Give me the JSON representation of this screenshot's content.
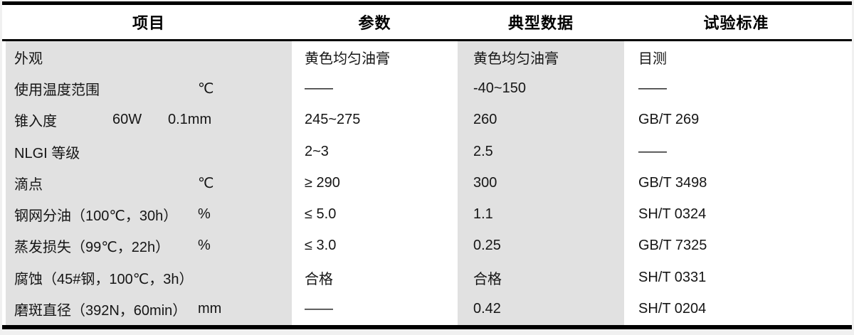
{
  "colors": {
    "stripe_gray": "#e1e1e1",
    "border_black": "#000000",
    "page_background": "#f0f0f0",
    "cell_white": "#ffffff"
  },
  "table": {
    "columns": [
      "项目",
      "参数",
      "典型数据",
      "试验标准"
    ],
    "rows": [
      {
        "item": "外观",
        "qualifier": "",
        "unit": "",
        "param": "黄色均匀油膏",
        "typical": "黄色均匀油膏",
        "standard": "目测"
      },
      {
        "item": "使用温度范围",
        "qualifier": "",
        "unit": "℃",
        "param": "——",
        "typical": "-40~150",
        "standard": "——"
      },
      {
        "item": "锥入度",
        "qualifier": "60W",
        "unit": "0.1mm",
        "param": "245~275",
        "typical": "260",
        "standard": "GB/T 269"
      },
      {
        "item": "NLGI 等级",
        "qualifier": "",
        "unit": "",
        "param": "2~3",
        "typical": "2.5",
        "standard": "——"
      },
      {
        "item": "滴点",
        "qualifier": "",
        "unit": "℃",
        "param": "≥ 290",
        "typical": "300",
        "standard": "GB/T 3498"
      },
      {
        "item": "钢网分油（100℃，30h）",
        "qualifier": "",
        "unit": "%",
        "param": "≤ 5.0",
        "typical": "1.1",
        "standard": "SH/T 0324"
      },
      {
        "item": "蒸发损失（99℃，22h）",
        "qualifier": "",
        "unit": "%",
        "param": "≤ 3.0",
        "typical": "0.25",
        "standard": "GB/T 7325"
      },
      {
        "item": "腐蚀（45#钢，100℃，3h）",
        "qualifier": "",
        "unit": "",
        "param": "合格",
        "typical": "合格",
        "standard": "SH/T 0331"
      },
      {
        "item": "磨斑直径（392N，60min）",
        "qualifier": "",
        "unit": "mm",
        "param": "——",
        "typical": "0.42",
        "standard": "SH/T 0204"
      }
    ]
  }
}
